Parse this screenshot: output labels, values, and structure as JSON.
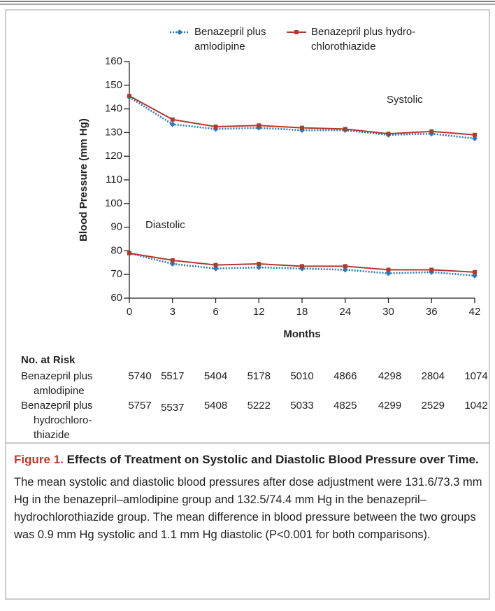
{
  "chart_data": {
    "type": "line",
    "y_label": "Blood Pressure (mm Hg)",
    "x_label": "Months",
    "categories": [
      "0",
      "3",
      "6",
      "12",
      "18",
      "24",
      "30",
      "36",
      "42"
    ],
    "ylim": [
      60,
      160
    ],
    "yticks": [
      60,
      70,
      80,
      90,
      100,
      110,
      120,
      130,
      140,
      150,
      160
    ],
    "annotations": [
      "Systolic",
      "Diastolic"
    ],
    "series": [
      {
        "name": [
          "Benazepril plus",
          "amlodipine"
        ],
        "color": "#2a7ab8",
        "style": "dotted",
        "systolic": [
          145,
          133.5,
          131.5,
          132,
          131,
          131,
          129,
          129.5,
          127.5
        ],
        "diastolic": [
          79,
          74.5,
          72.5,
          73,
          72.5,
          72,
          70.5,
          71,
          69.5
        ]
      },
      {
        "name": [
          "Benazepril plus hydro-",
          "chlorothiazide"
        ],
        "color": "#b03a2e",
        "style": "solid",
        "systolic": [
          145.5,
          135.5,
          132.5,
          133,
          132,
          131.5,
          129.5,
          130.5,
          129
        ],
        "diastolic": [
          79,
          76,
          74,
          74.5,
          73.5,
          73.5,
          72,
          72,
          71
        ]
      }
    ]
  },
  "risk_table": {
    "title": "No. at Risk",
    "rows": [
      {
        "label": [
          "Benazepril plus",
          "amlodipine"
        ],
        "values": [
          5740,
          5517,
          5404,
          5178,
          5010,
          4866,
          4298,
          2804,
          1074
        ]
      },
      {
        "label": [
          "Benazepril plus",
          "hydrochloro-",
          "thiazide"
        ],
        "values": [
          5757,
          5537,
          5408,
          5222,
          5033,
          4825,
          4299,
          2529,
          1042
        ]
      }
    ]
  },
  "caption": {
    "figure": "Figure 1.",
    "title": "Effects of Treatment on Systolic and Diastolic Blood Pressure over Time.",
    "body": "The mean systolic and diastolic blood pressures after dose adjustment were 131.6/73.3 mm Hg in the benazepril–amlodipine group and 132.5/74.4 mm Hg in the benazepril–hydrochlorothiazide group. The mean difference in blood pressure between the two groups was 0.9 mm Hg systolic and 1.1 mm Hg diastolic (P<0.001 for both comparisons)."
  }
}
